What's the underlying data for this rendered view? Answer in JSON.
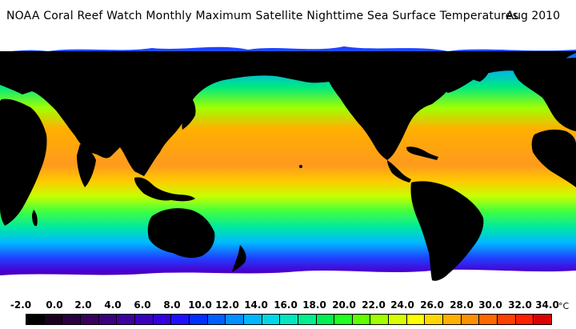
{
  "header": {
    "title": "NOAA Coral Reef Watch Monthly Maximum Satellite Nighttime Sea Surface Temperatures",
    "date": "Aug 2010"
  },
  "legend": {
    "ticks": [
      "-2.0",
      "0.0",
      "2.0",
      "4.0",
      "6.0",
      "8.0",
      "10.0",
      "12.0",
      "14.0",
      "16.0",
      "18.0",
      "20.0",
      "22.0",
      "24.0",
      "26.0",
      "28.0",
      "30.0",
      "32.0",
      "34.0"
    ],
    "unit": "°C",
    "colors": [
      "#000000",
      "#1a0020",
      "#2a0040",
      "#3a0060",
      "#3c0080",
      "#3f00a0",
      "#3a00c0",
      "#3300e0",
      "#2010ff",
      "#0030ff",
      "#0060ff",
      "#0090ff",
      "#00b8ff",
      "#00d8e8",
      "#00e8c0",
      "#00f090",
      "#00f050",
      "#20ff20",
      "#60ff00",
      "#a0ff00",
      "#d8ff00",
      "#ffff00",
      "#ffd800",
      "#ffb000",
      "#ff9000",
      "#ff6800",
      "#ff4000",
      "#ff2000",
      "#e00000"
    ]
  },
  "map_colors": {
    "land": "#000000",
    "ice": "#ffffff",
    "tropical": "#ff9a1e",
    "warm": "#ffd000",
    "temperate": "#40ff40",
    "cool": "#00c8ff",
    "cold": "#3050ff",
    "polar": "#5a00b0"
  }
}
